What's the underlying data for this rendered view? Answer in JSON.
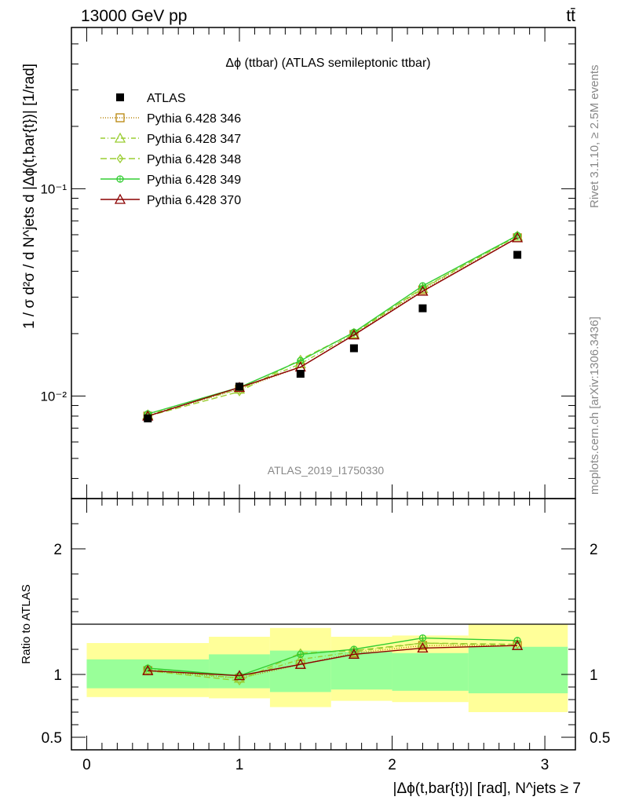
{
  "header": {
    "left": "13000 GeV pp",
    "right": "tt̄"
  },
  "side_text": {
    "rivet": "Rivet 3.1.10, ≥ 2.5M events",
    "mcplots": "mcplots.cern.ch [arXiv:1306.3436]"
  },
  "chart_data": [
    {
      "panel": "main",
      "type": "scatter",
      "title": "Δϕ (ttbar) (ATLAS semileptonic ttbar)",
      "analysis_label": "ATLAS_2019_I1750330",
      "xlabel": "|Δϕ(t,bar{t})| [rad], N^jets ≥ 7",
      "ylabel": "1 / σ d²σ / d N^jets d |Δϕ(t,bar{t})| [1/rad]",
      "yscale": "log",
      "xlim": [
        -0.1,
        3.2
      ],
      "ylim": [
        0.0032,
        0.6
      ],
      "ytick_labels": [
        "10⁻²",
        "10⁻¹"
      ],
      "legend_position": "top-left",
      "x": [
        0.4,
        1.0,
        1.4,
        1.75,
        2.2,
        2.82
      ],
      "data": {
        "name": "ATLAS",
        "values": [
          0.0078,
          0.0111,
          0.0128,
          0.017,
          0.0265,
          0.048
        ]
      },
      "series": [
        {
          "name": "Pythia 6.428 346",
          "color": "#b8860b",
          "dash": "1,2",
          "marker": "square-open",
          "values": [
            0.008,
            0.0108,
            0.0138,
            0.0198,
            0.0325,
            0.058
          ]
        },
        {
          "name": "Pythia 6.428 347",
          "color": "#9acd32",
          "dash": "6,3,1,3",
          "marker": "triangle-open",
          "values": [
            0.0081,
            0.0108,
            0.0143,
            0.02,
            0.033,
            0.059
          ]
        },
        {
          "name": "Pythia 6.428 348",
          "color": "#9acd32",
          "dash": "8,4",
          "marker": "diamond-open",
          "values": [
            0.008,
            0.0105,
            0.015,
            0.0202,
            0.0332,
            0.0595
          ]
        },
        {
          "name": "Pythia 6.428 349",
          "color": "#32cd32",
          "dash": "",
          "marker": "circle-cross",
          "values": [
            0.0082,
            0.011,
            0.0148,
            0.0203,
            0.034,
            0.0595
          ]
        },
        {
          "name": "Pythia 6.428 370",
          "color": "#8b0000",
          "dash": "",
          "marker": "triangle-open",
          "values": [
            0.008,
            0.011,
            0.0138,
            0.0197,
            0.032,
            0.058
          ]
        }
      ]
    },
    {
      "panel": "ratio",
      "type": "line",
      "ylabel": "Ratio to ATLAS",
      "xlim": [
        -0.1,
        3.2
      ],
      "ylim": [
        0.4,
        2.4
      ],
      "x_tick_labels": [
        "0",
        "1",
        "2",
        "3"
      ],
      "y_tick_labels": [
        "0.5",
        "1",
        "2"
      ],
      "bins": [
        {
          "x": [
            0.0,
            0.8
          ],
          "green": [
            0.89,
            1.12
          ],
          "yellow": [
            0.82,
            1.25
          ]
        },
        {
          "x": [
            0.8,
            1.2
          ],
          "green": [
            0.89,
            1.16
          ],
          "yellow": [
            0.81,
            1.3
          ]
        },
        {
          "x": [
            1.2,
            1.6
          ],
          "green": [
            0.86,
            1.19
          ],
          "yellow": [
            0.74,
            1.37
          ]
        },
        {
          "x": [
            1.6,
            2.0
          ],
          "green": [
            0.88,
            1.18
          ],
          "yellow": [
            0.79,
            1.3
          ]
        },
        {
          "x": [
            2.0,
            2.5
          ],
          "green": [
            0.87,
            1.17
          ],
          "yellow": [
            0.78,
            1.31
          ]
        },
        {
          "x": [
            2.5,
            3.15
          ],
          "green": [
            0.85,
            1.22
          ],
          "yellow": [
            0.7,
            1.4
          ]
        }
      ],
      "x": [
        0.4,
        1.0,
        1.4,
        1.75,
        2.2,
        2.82
      ],
      "series": [
        {
          "name": "Pythia 6.428 346",
          "color": "#b8860b",
          "dash": "1,2",
          "marker": "square-open",
          "values": [
            1.03,
            0.97,
            1.08,
            1.17,
            1.23,
            1.23
          ]
        },
        {
          "name": "Pythia 6.428 347",
          "color": "#9acd32",
          "dash": "6,3,1,3",
          "marker": "triangle-open",
          "values": [
            1.04,
            0.97,
            1.12,
            1.18,
            1.25,
            1.23
          ]
        },
        {
          "name": "Pythia 6.428 348",
          "color": "#9acd32",
          "dash": "8,4",
          "marker": "diamond-open",
          "values": [
            1.03,
            0.95,
            1.17,
            1.19,
            1.25,
            1.24
          ]
        },
        {
          "name": "Pythia 6.428 349",
          "color": "#32cd32",
          "dash": "",
          "marker": "circle-cross",
          "values": [
            1.05,
            0.99,
            1.16,
            1.2,
            1.29,
            1.27
          ]
        },
        {
          "name": "Pythia 6.428 370",
          "color": "#8b0000",
          "dash": "",
          "marker": "triangle-open",
          "values": [
            1.03,
            0.99,
            1.08,
            1.16,
            1.21,
            1.23
          ]
        }
      ]
    }
  ]
}
